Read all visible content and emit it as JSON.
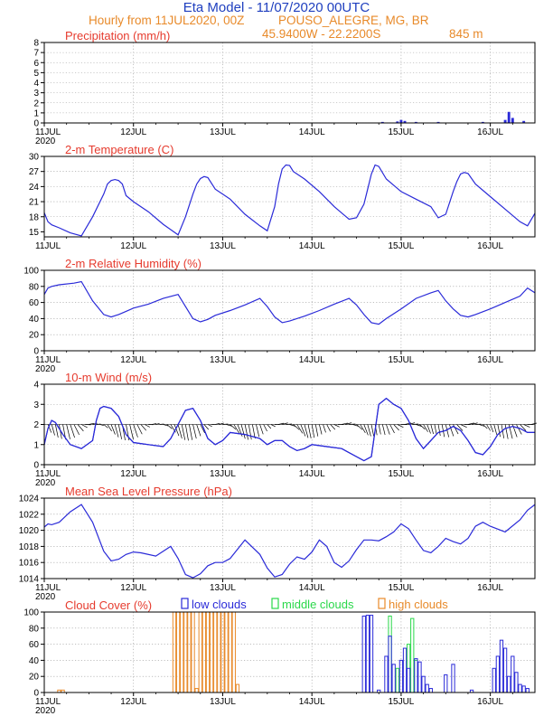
{
  "header": {
    "title": "Eta Model - 11/07/2020 00UTC",
    "subtitle_left": "Hourly from 11JUL2020, 00Z",
    "location": "POUSO_ALEGRE, MG, BR",
    "coords": "45.9400W - 22.2200S",
    "elevation": "845   m"
  },
  "colors": {
    "line": "#2a2ad8",
    "title": "#1f3fbf",
    "panel_title": "#e63b2e",
    "orange": "#e88a2a",
    "low": "#2a2ad8",
    "middle": "#2ad84a",
    "high": "#e88a2a"
  },
  "xaxis": {
    "labels": [
      "11JUL",
      "12JUL",
      "13JUL",
      "14JUL",
      "15JUL",
      "16JUL"
    ],
    "year_label": "2020",
    "hours_total": 132
  },
  "chart_data": [
    {
      "id": "precip",
      "type": "bar",
      "title": "Precipitation (mm/h)",
      "ylim": [
        0,
        8
      ],
      "yticks": [
        "0",
        "1",
        "2",
        "3",
        "4",
        "5",
        "6",
        "7",
        "8"
      ],
      "ytick_values": [
        0,
        1,
        2,
        3,
        4,
        5,
        6,
        7,
        8
      ],
      "bars": [
        {
          "hour": 91,
          "value": 0.1
        },
        {
          "hour": 95,
          "value": 0.15
        },
        {
          "hour": 96,
          "value": 0.3
        },
        {
          "hour": 97,
          "value": 0.2
        },
        {
          "hour": 100,
          "value": 0.1
        },
        {
          "hour": 106,
          "value": 0.1
        },
        {
          "hour": 118,
          "value": 0.1
        },
        {
          "hour": 124,
          "value": 0.3
        },
        {
          "hour": 125,
          "value": 1.1
        },
        {
          "hour": 126,
          "value": 0.5
        },
        {
          "hour": 129,
          "value": 0.2
        }
      ]
    },
    {
      "id": "temp",
      "type": "line",
      "title": "2-m Temperature (C)",
      "ylim": [
        14,
        30
      ],
      "yticks": [
        "15",
        "18",
        "21",
        "24",
        "27",
        "30"
      ],
      "ytick_values": [
        15,
        18,
        21,
        24,
        27,
        30
      ],
      "x": [
        0,
        1,
        2,
        4,
        7,
        10,
        13,
        16,
        17,
        18,
        19,
        20,
        21,
        22,
        24,
        28,
        32,
        36,
        38,
        40,
        41,
        42,
        43,
        44,
        46,
        50,
        54,
        58,
        60,
        62,
        63,
        64,
        65,
        66,
        67,
        70,
        74,
        78,
        82,
        84,
        86,
        87,
        88,
        89,
        90,
        92,
        96,
        100,
        104,
        106,
        108,
        110,
        111,
        112,
        113,
        114,
        116,
        120,
        124,
        128,
        130,
        132
      ],
      "values": [
        18.8,
        17.0,
        16.4,
        15.8,
        14.8,
        14.2,
        18.0,
        22.5,
        24.5,
        25.2,
        25.4,
        25.2,
        24.5,
        22.2,
        21.0,
        19.0,
        16.5,
        14.4,
        18.0,
        22.5,
        24.5,
        25.6,
        26.0,
        25.8,
        23.5,
        21.5,
        18.5,
        16.2,
        15.2,
        20.0,
        24.5,
        27.5,
        28.3,
        28.2,
        27.0,
        25.5,
        23.0,
        20.0,
        17.5,
        17.8,
        20.5,
        23.5,
        26.5,
        28.3,
        28.0,
        25.5,
        23.0,
        21.5,
        20.0,
        17.8,
        18.5,
        23.0,
        25.0,
        26.5,
        26.8,
        26.6,
        24.5,
        22.0,
        19.5,
        17.0,
        16.2,
        18.7
      ]
    },
    {
      "id": "rh",
      "type": "line",
      "title": "2-m Relative Humidity (%)",
      "ylim": [
        0,
        100
      ],
      "yticks": [
        "0",
        "20",
        "40",
        "60",
        "80",
        "100"
      ],
      "ytick_values": [
        0,
        20,
        40,
        60,
        80,
        100
      ],
      "x": [
        0,
        1,
        2,
        4,
        8,
        10,
        13,
        16,
        18,
        20,
        22,
        24,
        28,
        32,
        36,
        38,
        40,
        42,
        44,
        46,
        50,
        54,
        58,
        60,
        62,
        64,
        66,
        70,
        74,
        78,
        82,
        84,
        86,
        88,
        90,
        92,
        96,
        100,
        104,
        106,
        108,
        110,
        112,
        114,
        116,
        120,
        124,
        128,
        130,
        132
      ],
      "values": [
        70,
        78,
        80,
        82,
        84,
        86,
        62,
        45,
        42,
        45,
        49,
        53,
        58,
        65,
        70,
        55,
        40,
        36,
        39,
        44,
        50,
        57,
        65,
        55,
        42,
        35,
        37,
        43,
        50,
        58,
        65,
        57,
        45,
        35,
        33,
        40,
        52,
        65,
        72,
        75,
        62,
        52,
        44,
        42,
        45,
        52,
        60,
        68,
        78,
        72
      ]
    },
    {
      "id": "wind",
      "type": "line",
      "title": "10-m Wind (m/s)",
      "ylim": [
        0,
        4
      ],
      "yticks": [
        "0",
        "1",
        "2",
        "3",
        "4"
      ],
      "ytick_values": [
        0,
        1,
        2,
        3,
        4
      ],
      "x": [
        0,
        1,
        2,
        3,
        5,
        7,
        10,
        13,
        14,
        15,
        16,
        18,
        20,
        22,
        24,
        28,
        32,
        34,
        36,
        38,
        40,
        42,
        44,
        46,
        48,
        50,
        54,
        58,
        60,
        62,
        64,
        66,
        68,
        70,
        72,
        76,
        80,
        84,
        86,
        88,
        90,
        92,
        94,
        96,
        98,
        100,
        102,
        104,
        106,
        108,
        110,
        112,
        114,
        116,
        118,
        120,
        122,
        124,
        126,
        128,
        130,
        132
      ],
      "values": [
        1.0,
        1.8,
        2.2,
        2.1,
        1.5,
        1.0,
        0.8,
        1.2,
        2.2,
        2.8,
        2.9,
        2.8,
        2.4,
        1.5,
        1.1,
        1.0,
        0.9,
        1.3,
        2.0,
        2.7,
        2.8,
        2.2,
        1.3,
        1.0,
        1.2,
        1.6,
        1.5,
        1.3,
        1.0,
        1.2,
        1.2,
        0.9,
        0.7,
        0.8,
        1.0,
        0.9,
        0.8,
        0.4,
        0.2,
        0.4,
        3.0,
        3.3,
        3.0,
        2.8,
        2.2,
        1.3,
        0.8,
        1.2,
        1.6,
        1.7,
        1.9,
        1.7,
        1.2,
        0.6,
        0.5,
        0.9,
        1.5,
        1.8,
        1.9,
        1.8,
        1.6,
        1.6
      ]
    },
    {
      "id": "mslp",
      "type": "line",
      "title": "Mean Sea Level Pressure (hPa)",
      "ylim": [
        1014,
        1024
      ],
      "yticks": [
        "1014",
        "1016",
        "1018",
        "1020",
        "1022",
        "1024"
      ],
      "ytick_values": [
        1014,
        1016,
        1018,
        1020,
        1022,
        1024
      ],
      "x": [
        0,
        1,
        2,
        4,
        7,
        10,
        13,
        16,
        18,
        20,
        22,
        24,
        26,
        30,
        34,
        36,
        38,
        40,
        42,
        44,
        46,
        48,
        50,
        54,
        58,
        60,
        62,
        64,
        66,
        68,
        70,
        72,
        74,
        76,
        78,
        80,
        82,
        84,
        86,
        88,
        90,
        92,
        94,
        96,
        98,
        100,
        102,
        104,
        106,
        108,
        110,
        112,
        114,
        116,
        118,
        120,
        124,
        128,
        130,
        132
      ],
      "values": [
        1020.4,
        1020.8,
        1020.7,
        1021.0,
        1022.3,
        1023.2,
        1021.0,
        1017.4,
        1016.2,
        1016.4,
        1017.0,
        1017.3,
        1017.2,
        1016.8,
        1018.0,
        1016.5,
        1014.5,
        1014.1,
        1014.6,
        1015.6,
        1016.0,
        1016.0,
        1016.5,
        1018.8,
        1017.0,
        1015.3,
        1014.2,
        1014.5,
        1015.8,
        1016.7,
        1016.4,
        1017.3,
        1018.8,
        1018.0,
        1016.0,
        1015.4,
        1016.2,
        1017.6,
        1018.8,
        1018.8,
        1018.7,
        1019.2,
        1019.8,
        1020.8,
        1020.2,
        1018.8,
        1017.5,
        1017.2,
        1018.0,
        1019.0,
        1018.6,
        1018.3,
        1019.0,
        1020.5,
        1021.0,
        1020.5,
        1019.8,
        1021.3,
        1022.5,
        1023.2
      ]
    },
    {
      "id": "cloud",
      "type": "bar",
      "title": "Cloud Cover (%)",
      "legend": [
        "low clouds",
        "middle clouds",
        "high clouds"
      ],
      "ylim": [
        0,
        100
      ],
      "yticks": [
        "0",
        "20",
        "40",
        "60",
        "80",
        "100"
      ],
      "ytick_values": [
        0,
        20,
        40,
        60,
        80,
        100
      ],
      "high_bars": [
        {
          "hour": 4,
          "value": 3
        },
        {
          "hour": 5,
          "value": 3
        },
        {
          "hour": 35,
          "value": 100
        },
        {
          "hour": 36,
          "value": 100
        },
        {
          "hour": 37,
          "value": 100
        },
        {
          "hour": 38,
          "value": 100
        },
        {
          "hour": 39,
          "value": 100
        },
        {
          "hour": 40,
          "value": 100
        },
        {
          "hour": 41,
          "value": 5
        },
        {
          "hour": 42,
          "value": 100
        },
        {
          "hour": 43,
          "value": 100
        },
        {
          "hour": 44,
          "value": 100
        },
        {
          "hour": 45,
          "value": 100
        },
        {
          "hour": 46,
          "value": 100
        },
        {
          "hour": 47,
          "value": 100
        },
        {
          "hour": 48,
          "value": 100
        },
        {
          "hour": 49,
          "value": 100
        },
        {
          "hour": 50,
          "value": 100
        },
        {
          "hour": 51,
          "value": 100
        },
        {
          "hour": 52,
          "value": 10
        }
      ],
      "middle_bars": [
        {
          "hour": 93,
          "value": 95
        },
        {
          "hour": 95,
          "value": 30
        },
        {
          "hour": 98,
          "value": 60
        },
        {
          "hour": 99,
          "value": 92
        },
        {
          "hour": 100,
          "value": 40
        }
      ],
      "low_bars": [
        {
          "hour": 86,
          "value": 95
        },
        {
          "hour": 87,
          "value": 96
        },
        {
          "hour": 88,
          "value": 96
        },
        {
          "hour": 90,
          "value": 3
        },
        {
          "hour": 92,
          "value": 45
        },
        {
          "hour": 93,
          "value": 70
        },
        {
          "hour": 94,
          "value": 35
        },
        {
          "hour": 96,
          "value": 40
        },
        {
          "hour": 97,
          "value": 55
        },
        {
          "hour": 98,
          "value": 30
        },
        {
          "hour": 100,
          "value": 42
        },
        {
          "hour": 101,
          "value": 38
        },
        {
          "hour": 102,
          "value": 20
        },
        {
          "hour": 103,
          "value": 10
        },
        {
          "hour": 104,
          "value": 5
        },
        {
          "hour": 108,
          "value": 22
        },
        {
          "hour": 110,
          "value": 35
        },
        {
          "hour": 115,
          "value": 3
        },
        {
          "hour": 121,
          "value": 30
        },
        {
          "hour": 122,
          "value": 45
        },
        {
          "hour": 123,
          "value": 65
        },
        {
          "hour": 124,
          "value": 55
        },
        {
          "hour": 125,
          "value": 20
        },
        {
          "hour": 126,
          "value": 45
        },
        {
          "hour": 127,
          "value": 25
        },
        {
          "hour": 128,
          "value": 10
        },
        {
          "hour": 129,
          "value": 8
        },
        {
          "hour": 130,
          "value": 5
        }
      ]
    }
  ]
}
